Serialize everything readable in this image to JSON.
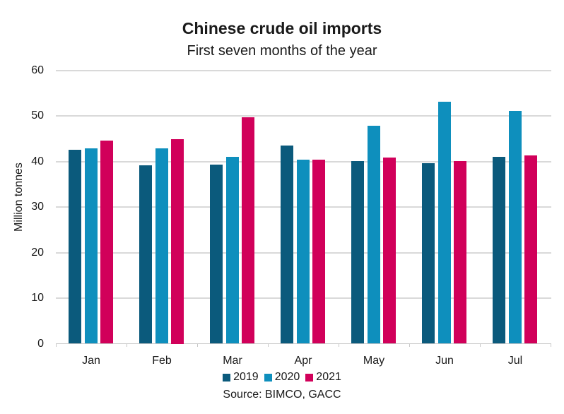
{
  "chart_data": {
    "type": "bar",
    "title": "Chinese crude oil imports",
    "subtitle": "First seven months of the year",
    "xlabel": "",
    "ylabel": "Million tonnes",
    "ylim": [
      0,
      60
    ],
    "yticks": [
      0,
      10,
      20,
      30,
      40,
      50,
      60
    ],
    "grid": true,
    "legend_position": "bottom",
    "categories": [
      "Jan",
      "Feb",
      "Mar",
      "Apr",
      "May",
      "Jun",
      "Jul"
    ],
    "series": [
      {
        "name": "2019",
        "color": "#0b5a7c",
        "values": [
          42.6,
          39.2,
          39.3,
          43.6,
          40.2,
          39.6,
          41.0
        ]
      },
      {
        "name": "2020",
        "color": "#0e8fbd",
        "values": [
          43.0,
          43.0,
          41.0,
          40.4,
          47.9,
          53.2,
          51.1
        ]
      },
      {
        "name": "2021",
        "color": "#d1005a",
        "values": [
          44.6,
          45.0,
          49.7,
          40.4,
          40.9,
          40.1,
          41.3
        ]
      }
    ],
    "source": "Source: BIMCO, GACC"
  }
}
